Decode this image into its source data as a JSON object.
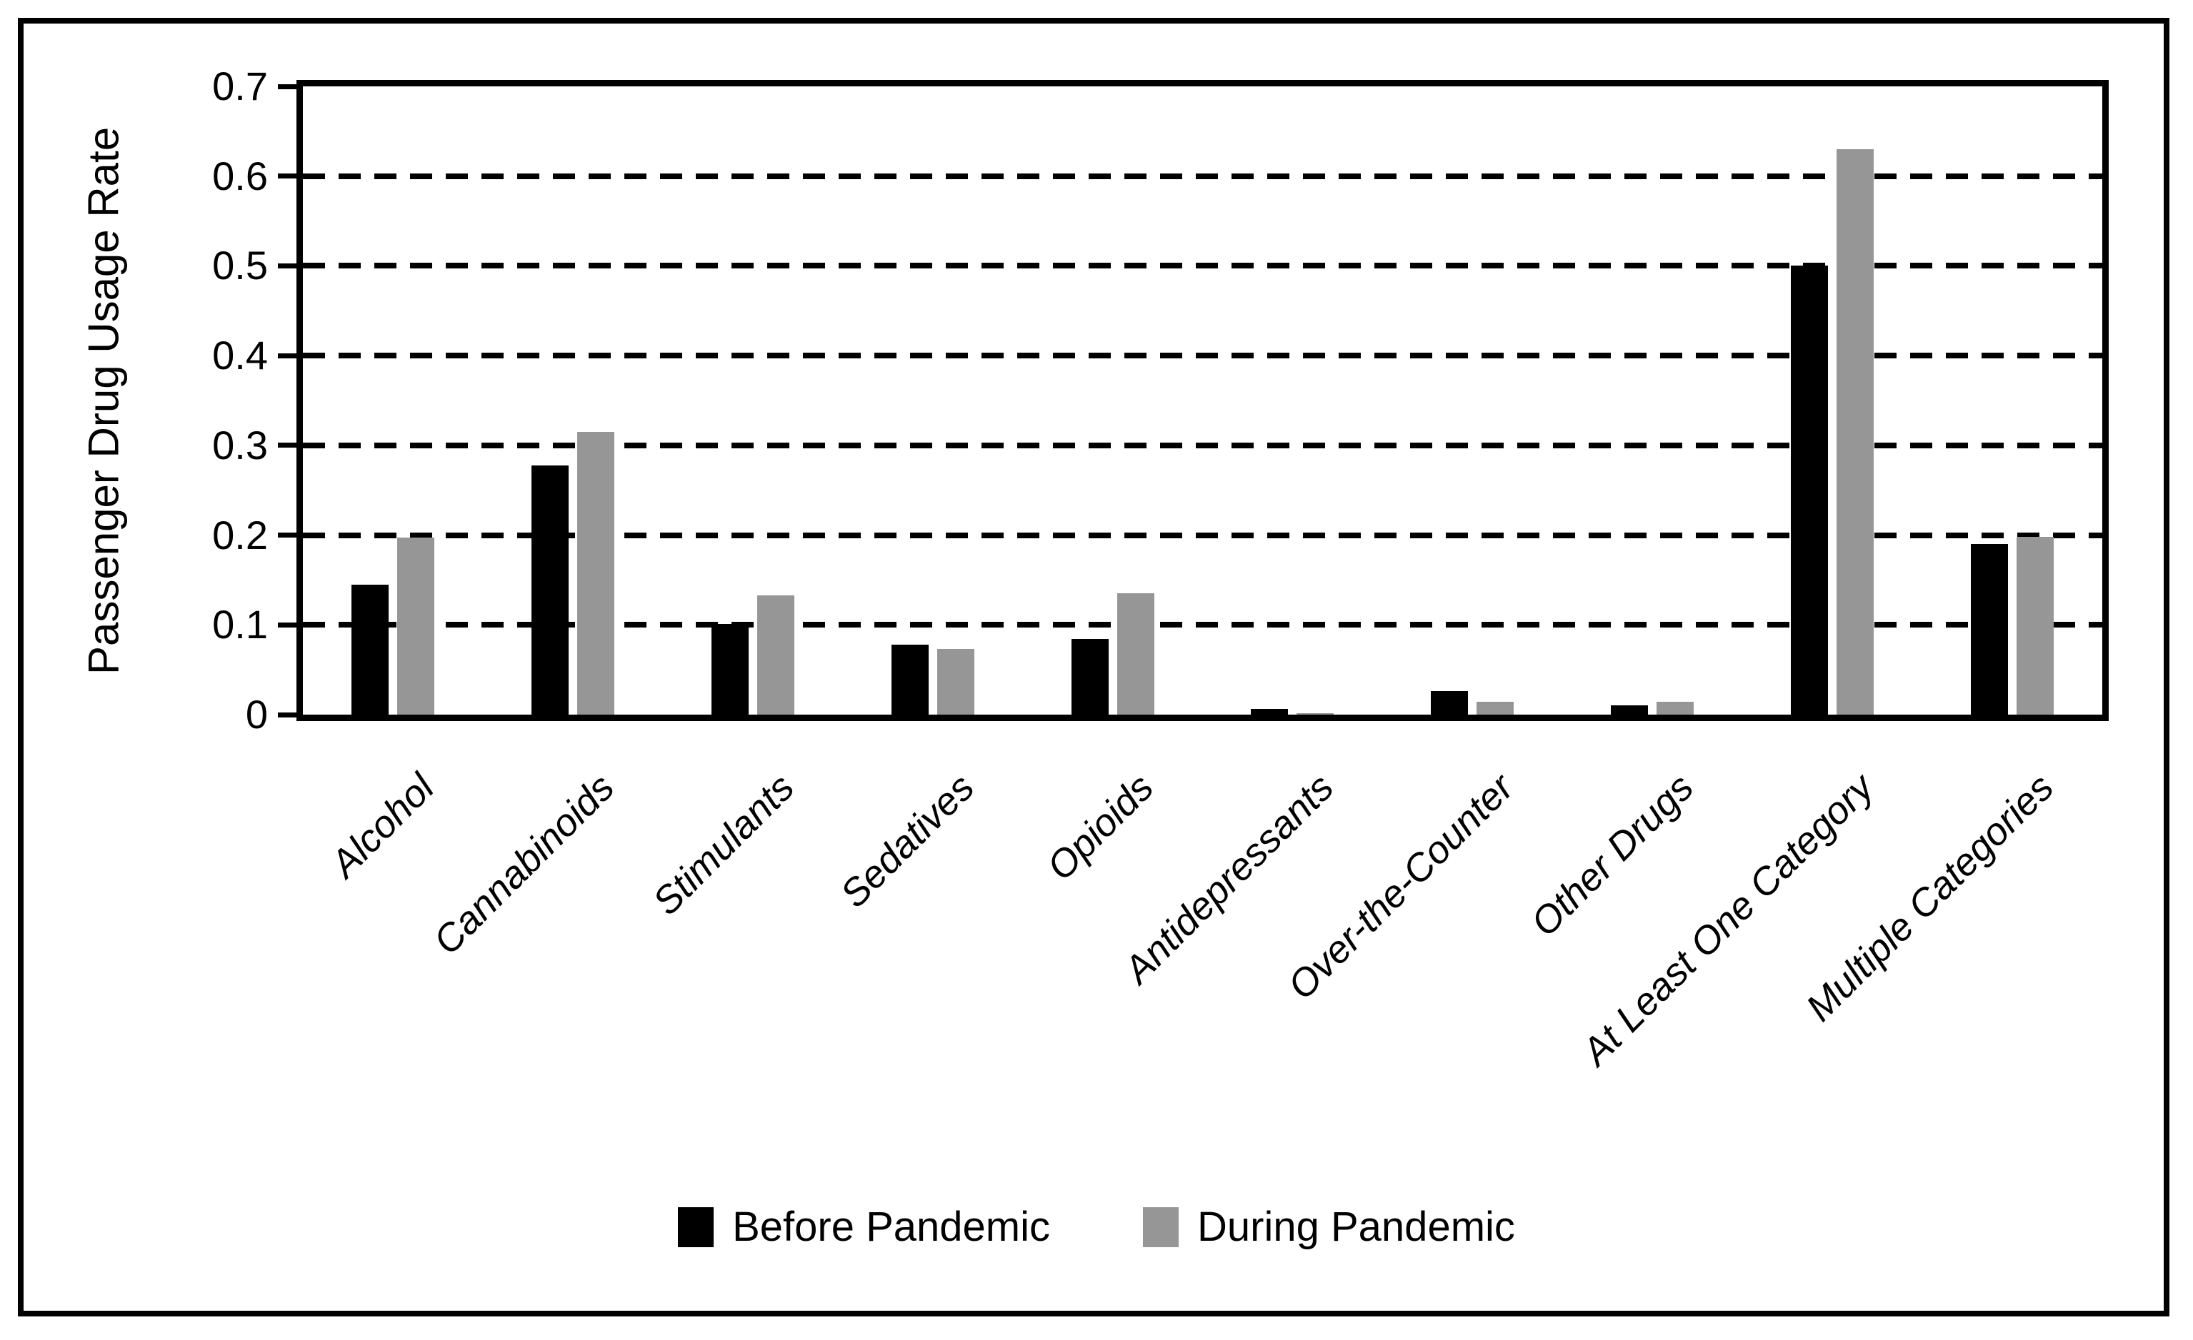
{
  "figure": {
    "background": "#ffffff",
    "border_color": "#000000"
  },
  "chart_data": {
    "type": "bar",
    "title": "",
    "xlabel": "",
    "ylabel": "Passenger Drug Usage Rate",
    "ylim": [
      0,
      0.7
    ],
    "yticks": [
      0,
      0.1,
      0.2,
      0.3,
      0.4,
      0.5,
      0.6,
      0.7
    ],
    "ytick_labels": [
      "0",
      "0.1",
      "0.2",
      "0.3",
      "0.4",
      "0.5",
      "0.6",
      "0.7"
    ],
    "grid": "horizontal-dashed",
    "grid_color": "#000000",
    "axis_color": "#000000",
    "legend_position": "bottom-center",
    "categories": [
      "Alcohol",
      "Cannabinoids",
      "Stimulants",
      "Sedatives",
      "Opioids",
      "Antidepressants",
      "Over-the-Counter",
      "Other Drugs",
      "At Least One Category",
      "Multiple Categories"
    ],
    "series": [
      {
        "name": "Before Pandemic",
        "color": "#000000",
        "values": [
          0.145,
          0.278,
          0.101,
          0.078,
          0.084,
          0.006,
          0.026,
          0.01,
          0.5,
          0.19
        ]
      },
      {
        "name": "During Pandemic",
        "color": "#969696",
        "values": [
          0.197,
          0.315,
          0.133,
          0.073,
          0.135,
          0.002,
          0.014,
          0.014,
          0.63,
          0.198
        ]
      }
    ]
  }
}
